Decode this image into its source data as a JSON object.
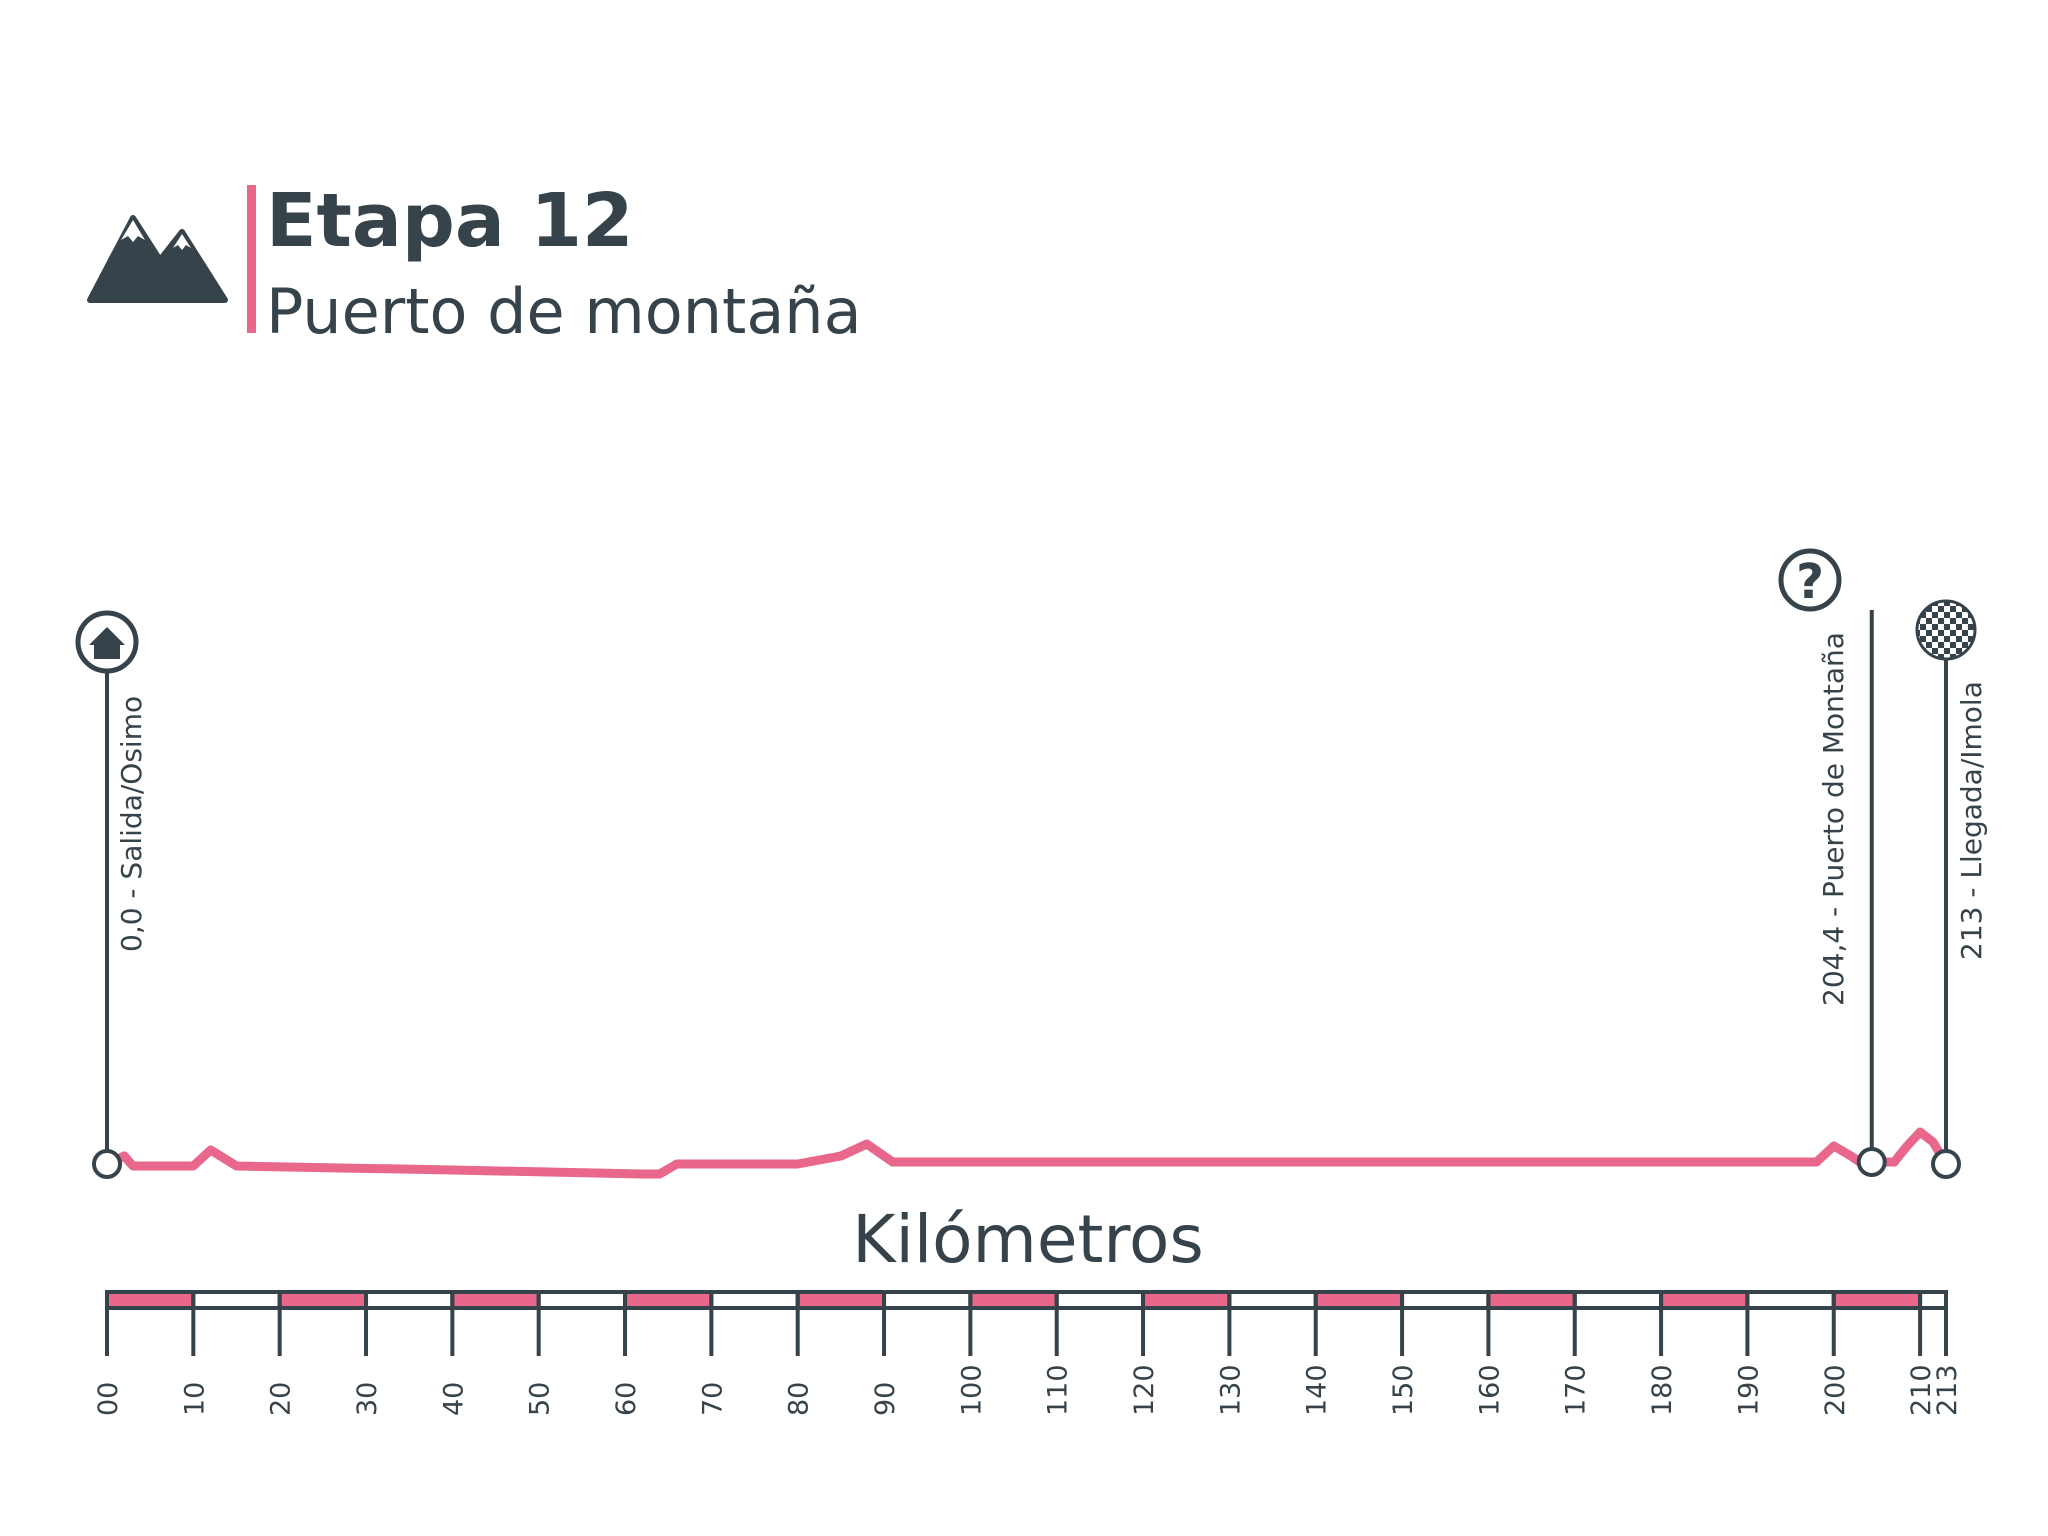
{
  "header": {
    "title": "Etapa 12",
    "subtitle": "Puerto de montaña",
    "icon": "mountain-icon"
  },
  "colors": {
    "dark": "#36434b",
    "accent": "#e8678a",
    "background": "#ffffff"
  },
  "chart_data": {
    "type": "line",
    "xlabel": "Kilómetros",
    "xlim": [
      0,
      213
    ],
    "ylim": [
      0,
      100
    ],
    "profile": {
      "x": [
        0,
        2,
        3,
        10,
        12,
        15,
        40,
        62,
        64,
        66,
        70,
        80,
        85,
        88,
        91,
        100,
        150,
        190,
        198,
        200,
        202,
        203,
        205,
        207,
        208.5,
        210,
        211.5,
        213
      ],
      "y": [
        2,
        4,
        1.5,
        1.5,
        5.5,
        1.5,
        0.5,
        -0.5,
        -0.5,
        2,
        2,
        2,
        4,
        7,
        2.5,
        2.5,
        2.5,
        2.5,
        2.5,
        6.5,
        4,
        2.5,
        2.5,
        2.5,
        6.5,
        10,
        7.5,
        2
      ]
    },
    "waypoints": [
      {
        "km": 0,
        "label": "0,0 - Salida/Osimo",
        "icon": "home-icon"
      },
      {
        "km": 204.4,
        "label": "204,4 - Puerto de Montaña",
        "icon": "question-icon"
      },
      {
        "km": 213,
        "label": "213 - Llegada/Imola",
        "icon": "finish-flag-icon"
      }
    ],
    "ticks": [
      "00",
      "10",
      "20",
      "30",
      "40",
      "50",
      "60",
      "70",
      "80",
      "90",
      "100",
      "110",
      "120",
      "130",
      "140",
      "150",
      "160",
      "170",
      "180",
      "190",
      "200",
      "210",
      "213"
    ],
    "tick_values": [
      0,
      10,
      20,
      30,
      40,
      50,
      60,
      70,
      80,
      90,
      100,
      110,
      120,
      130,
      140,
      150,
      160,
      170,
      180,
      190,
      200,
      210,
      213
    ],
    "scale_bar": [
      "pink",
      "white",
      "pink",
      "white",
      "pink",
      "white",
      "pink",
      "white",
      "pink",
      "white",
      "pink",
      "white",
      "pink",
      "white",
      "pink",
      "white",
      "pink",
      "white",
      "pink",
      "white",
      "pink",
      "white"
    ]
  }
}
